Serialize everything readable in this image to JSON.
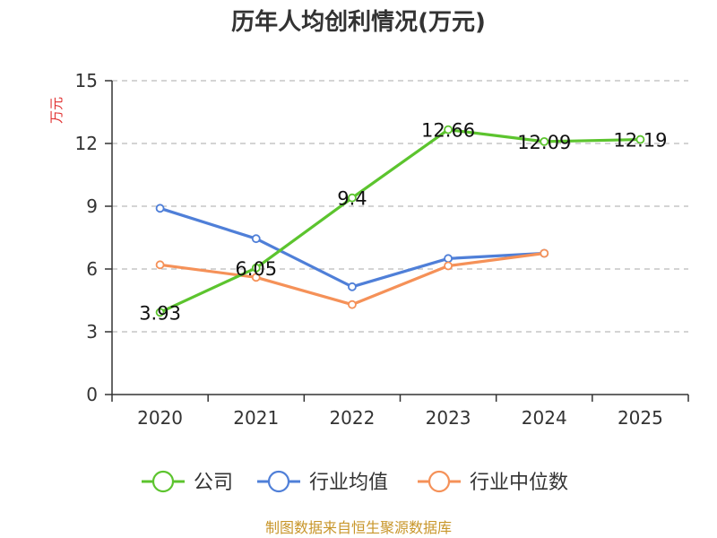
{
  "chart_data": {
    "type": "line",
    "title": "历年人均创利情况(万元)",
    "ylabel": "万元",
    "xlabel": "",
    "categories": [
      "2020",
      "2021",
      "2022",
      "2023",
      "2024",
      "2025"
    ],
    "ylim": [
      0,
      15
    ],
    "yticks": [
      "0",
      "3",
      "6",
      "9",
      "12",
      "15"
    ],
    "grid": true,
    "legend_position": "bottom",
    "series": [
      {
        "name": "公司",
        "color": "#5cc42e",
        "values": [
          3.93,
          6.05,
          9.4,
          12.66,
          12.09,
          12.19
        ],
        "labels": [
          "3.93",
          "6.05",
          "9.4",
          "12.66",
          "12.09",
          "12.19"
        ]
      },
      {
        "name": "行业均值",
        "color": "#4f7fd8",
        "values": [
          8.9,
          7.45,
          5.15,
          6.5,
          6.75,
          null
        ]
      },
      {
        "name": "行业中位数",
        "color": "#f59158",
        "values": [
          6.2,
          5.6,
          4.3,
          6.15,
          6.75,
          null
        ]
      }
    ]
  },
  "source": "制图数据来自恒生聚源数据库"
}
